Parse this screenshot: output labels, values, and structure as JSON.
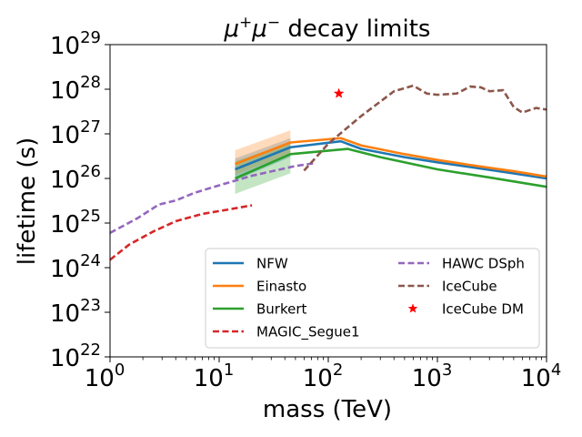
{
  "chart_data": {
    "type": "line",
    "title": "μ⁺μ⁻ decay limits",
    "title_parts": {
      "mu1": "μ",
      "plus": "+",
      "mu2": "μ",
      "minus": "−",
      "rest": " decay limits"
    },
    "xlabel": "mass (TeV)",
    "ylabel": "lifetime (s)",
    "xscale": "log",
    "yscale": "log",
    "xlim": [
      1,
      10000
    ],
    "ylim": [
      1e+22,
      1e+29
    ],
    "x_ticks": [
      {
        "value": 1,
        "base": "10",
        "exp": "0"
      },
      {
        "value": 10,
        "base": "10",
        "exp": "1"
      },
      {
        "value": 100,
        "base": "10",
        "exp": "2"
      },
      {
        "value": 1000,
        "base": "10",
        "exp": "3"
      },
      {
        "value": 10000,
        "base": "10",
        "exp": "4"
      }
    ],
    "y_ticks": [
      {
        "value": 1e+22,
        "base": "10",
        "exp": "22"
      },
      {
        "value": 1e+23,
        "base": "10",
        "exp": "23"
      },
      {
        "value": 1e+24,
        "base": "10",
        "exp": "24"
      },
      {
        "value": 1e+25,
        "base": "10",
        "exp": "25"
      },
      {
        "value": 1e+26,
        "base": "10",
        "exp": "26"
      },
      {
        "value": 1e+27,
        "base": "10",
        "exp": "27"
      },
      {
        "value": 1e+28,
        "base": "10",
        "exp": "28"
      },
      {
        "value": 1e+29,
        "base": "10",
        "exp": "29"
      }
    ],
    "legend_position": "lower-right",
    "series": [
      {
        "name": "NFW",
        "color": "#1f77b4",
        "style": "solid",
        "x": [
          14,
          45,
          130,
          200,
          500,
          1000,
          2000,
          5000,
          10000
        ],
        "y": [
          1.6e+26,
          5e+26,
          6.8e+26,
          4.6e+26,
          3e+26,
          2.3e+26,
          1.8e+26,
          1.3e+26,
          1e+26
        ],
        "band_low": [
          9e+25,
          3e+26
        ],
        "band_high": [
          2.8e+26,
          8e+26
        ],
        "band_x": [
          14,
          45
        ]
      },
      {
        "name": "Einasto",
        "color": "#ff7f0e",
        "style": "solid",
        "x": [
          14,
          45,
          130,
          200,
          500,
          1000,
          2000,
          5000,
          10000
        ],
        "y": [
          2.1e+26,
          6.4e+26,
          8e+26,
          5.5e+26,
          3.5e+26,
          2.6e+26,
          2e+26,
          1.45e+26,
          1.1e+26
        ],
        "band_low": [
          1.2e+26,
          3.6e+26
        ],
        "band_high": [
          4.3e+26,
          1.2e+27
        ],
        "band_x": [
          14,
          45
        ]
      },
      {
        "name": "Burkert",
        "color": "#2ca02c",
        "style": "solid",
        "x": [
          14,
          45,
          150,
          300,
          1000,
          3000,
          10000
        ],
        "y": [
          1e+26,
          3.5e+26,
          4.6e+26,
          3e+26,
          1.6e+26,
          1.05e+26,
          6.5e+25
        ],
        "band_low": [
          4.5e+25,
          1.3e+26
        ],
        "band_high": [
          2.4e+26,
          6.5e+26
        ],
        "band_x": [
          14,
          45
        ]
      },
      {
        "name": "MAGIC_Segue1",
        "color": "#d62728",
        "style": "dashed",
        "x": [
          1,
          1.5,
          2.5,
          4,
          7,
          12,
          20
        ],
        "y": [
          1.5e+24,
          3.3e+24,
          6.5e+24,
          1.1e+25,
          1.6e+25,
          2e+25,
          2.5e+25
        ]
      },
      {
        "name": "HAWC DSph",
        "color": "#9467bd",
        "style": "dashed",
        "x": [
          1,
          1.8,
          2.8,
          4,
          6,
          10,
          20,
          50,
          75
        ],
        "y": [
          6e+24,
          1.3e+25,
          2.6e+25,
          3.2e+25,
          4.8e+25,
          7e+25,
          1.15e+26,
          1.9e+26,
          2.2e+26
        ]
      },
      {
        "name": "IceCube",
        "color": "#8c564b",
        "style": "dashed",
        "x": [
          60,
          100,
          200,
          400,
          600,
          800,
          1000,
          1500,
          2000,
          2500,
          3000,
          4000,
          5000,
          6000,
          8000,
          10000
        ],
        "y": [
          1.5e+26,
          6e+26,
          2.5e+27,
          9e+27,
          1.2e+28,
          8e+27,
          7.5e+27,
          8e+27,
          1.15e+28,
          1.1e+28,
          9e+27,
          9.5e+27,
          4e+27,
          3e+27,
          3.8e+27,
          3.5e+27
        ]
      }
    ],
    "points": [
      {
        "name": "IceCube DM",
        "color": "#ff0000",
        "marker": "star",
        "x": 125,
        "y": 8e+27
      }
    ],
    "legend": {
      "col1": [
        "NFW",
        "Einasto",
        "Burkert",
        "MAGIC_Segue1"
      ],
      "col2": [
        "HAWC DSph",
        "IceCube",
        "IceCube DM"
      ]
    }
  }
}
